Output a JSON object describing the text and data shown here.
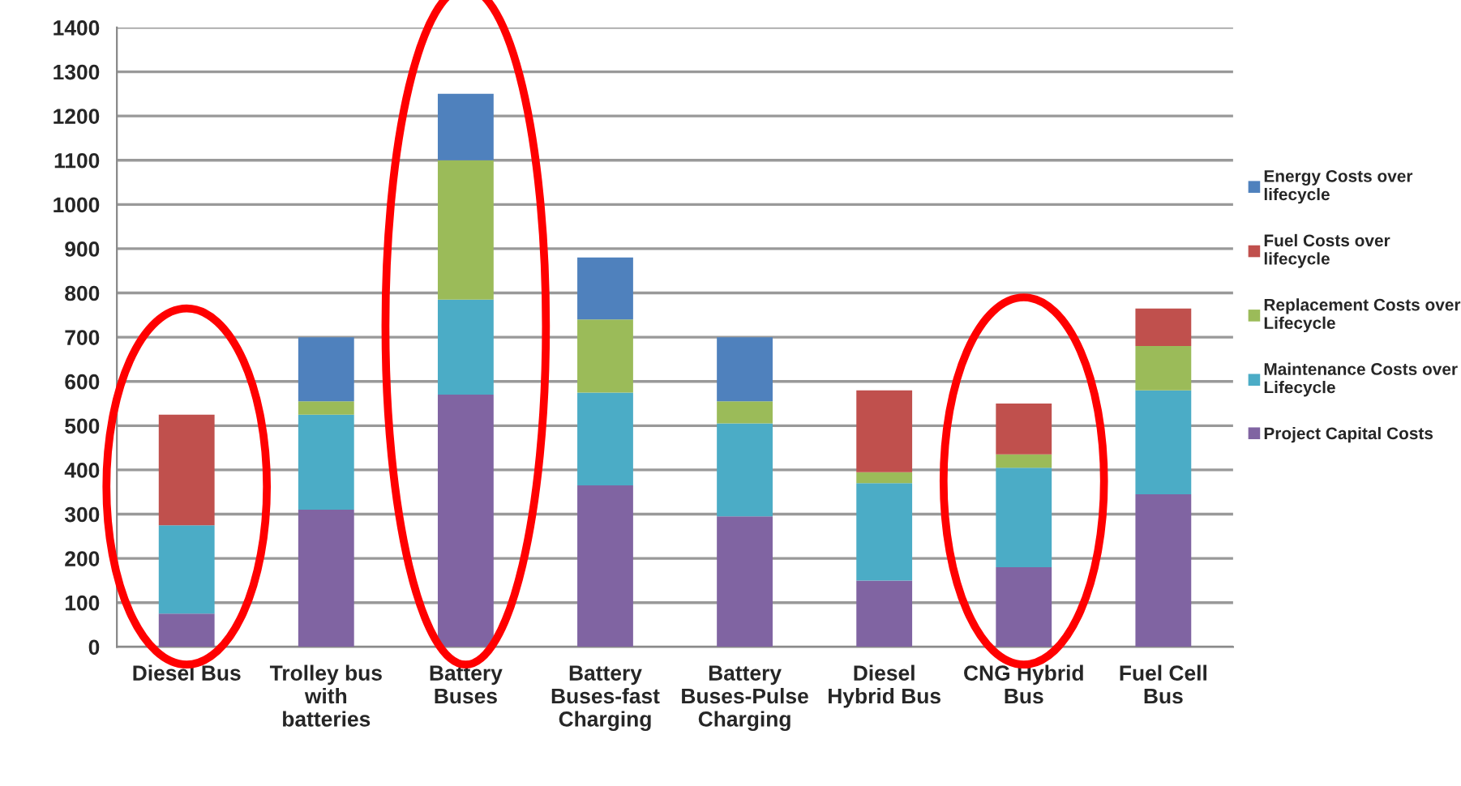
{
  "chart_data": {
    "type": "bar",
    "stacked": true,
    "categories": [
      "Diesel Bus",
      "Trolley bus with batteries",
      "Battery Buses",
      "Battery Buses-fast Charging",
      "Battery Buses-Pulse Charging",
      "Diesel Hybrid Bus",
      "CNG Hybrid Bus",
      "Fuel Cell Bus"
    ],
    "series": [
      {
        "name": "Project Capital Costs",
        "color": "#8064a2",
        "values": [
          75,
          310,
          570,
          365,
          295,
          150,
          180,
          345
        ]
      },
      {
        "name": "Maintenance Costs over Lifecycle",
        "color": "#4bacc6",
        "values": [
          200,
          215,
          215,
          210,
          210,
          220,
          225,
          235
        ]
      },
      {
        "name": "Replacement Costs over Lifecycle",
        "color": "#9bbb59",
        "values": [
          null,
          30,
          315,
          165,
          50,
          25,
          30,
          100
        ]
      },
      {
        "name": "Fuel Costs over lifecycle",
        "color": "#c0504d",
        "values": [
          250,
          null,
          null,
          null,
          null,
          185,
          115,
          85
        ]
      },
      {
        "name": "Energy Costs over lifecycle",
        "color": "#4f81bd",
        "values": [
          null,
          145,
          150,
          140,
          145,
          null,
          null,
          null
        ]
      }
    ],
    "ylim": [
      0,
      1400
    ],
    "yticks": [
      0,
      100,
      200,
      300,
      400,
      500,
      600,
      700,
      800,
      900,
      1000,
      1100,
      1200,
      1300,
      1400
    ],
    "grid": "y",
    "legend": "right"
  }
}
